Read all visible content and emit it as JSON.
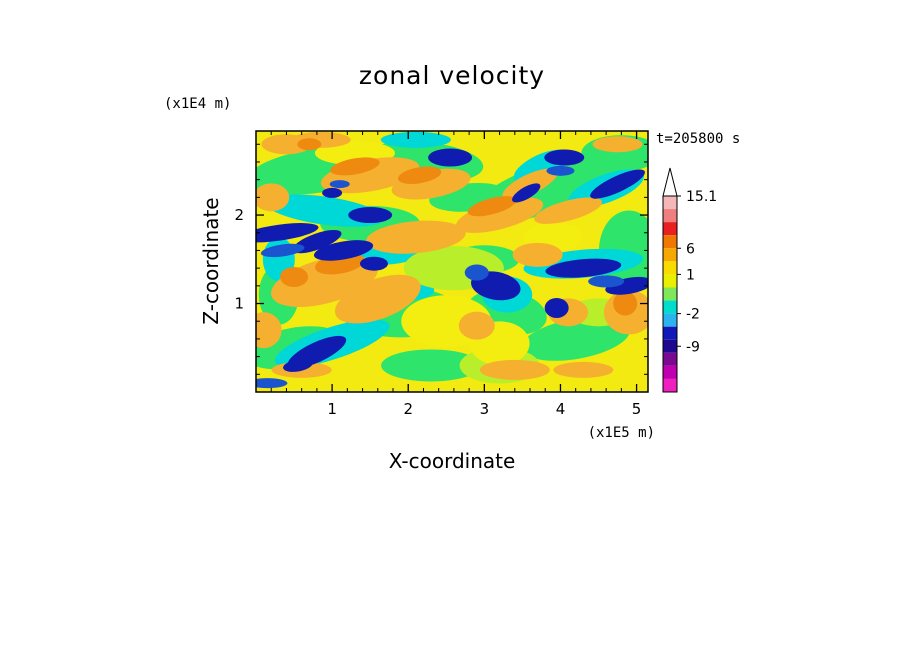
{
  "chart_data": {
    "type": "heatmap",
    "title": "zonal velocity",
    "xlabel": "X-coordinate",
    "ylabel": "Z-coordinate",
    "x_unit": "(x1E5 m)",
    "y_unit": "(x1E4 m)",
    "time_label": "t=205800 s",
    "xlim": [
      0,
      5.15
    ],
    "ylim": [
      0,
      2.95
    ],
    "x_ticks": [
      1,
      2,
      3,
      4,
      5
    ],
    "y_ticks": [
      1,
      2
    ],
    "colorbar": {
      "levels": [
        "15.1",
        "6",
        "1",
        "-2",
        "-9"
      ],
      "level_values": [
        15.1,
        6,
        1,
        -2,
        -9
      ],
      "colors": [
        "#ffffff",
        "#f4b6b6",
        "#ef7f7f",
        "#e82020",
        "#f07800",
        "#f6a800",
        "#f8dc00",
        "#e8f000",
        "#7ee85a",
        "#00ddcc",
        "#2db2f0",
        "#1018b8",
        "#1e0890",
        "#7a0890",
        "#c000b0",
        "#f020c0"
      ]
    },
    "palette": {
      "deep_blue": "#101cb0",
      "dark_blue": "#1a55cf",
      "cyan": "#00d8d8",
      "green": "#2fe46a",
      "yellow_green": "#b8ee2a",
      "yellow": "#f4ee10",
      "orange": "#f6b030",
      "dark_orange": "#ee8a10"
    }
  }
}
